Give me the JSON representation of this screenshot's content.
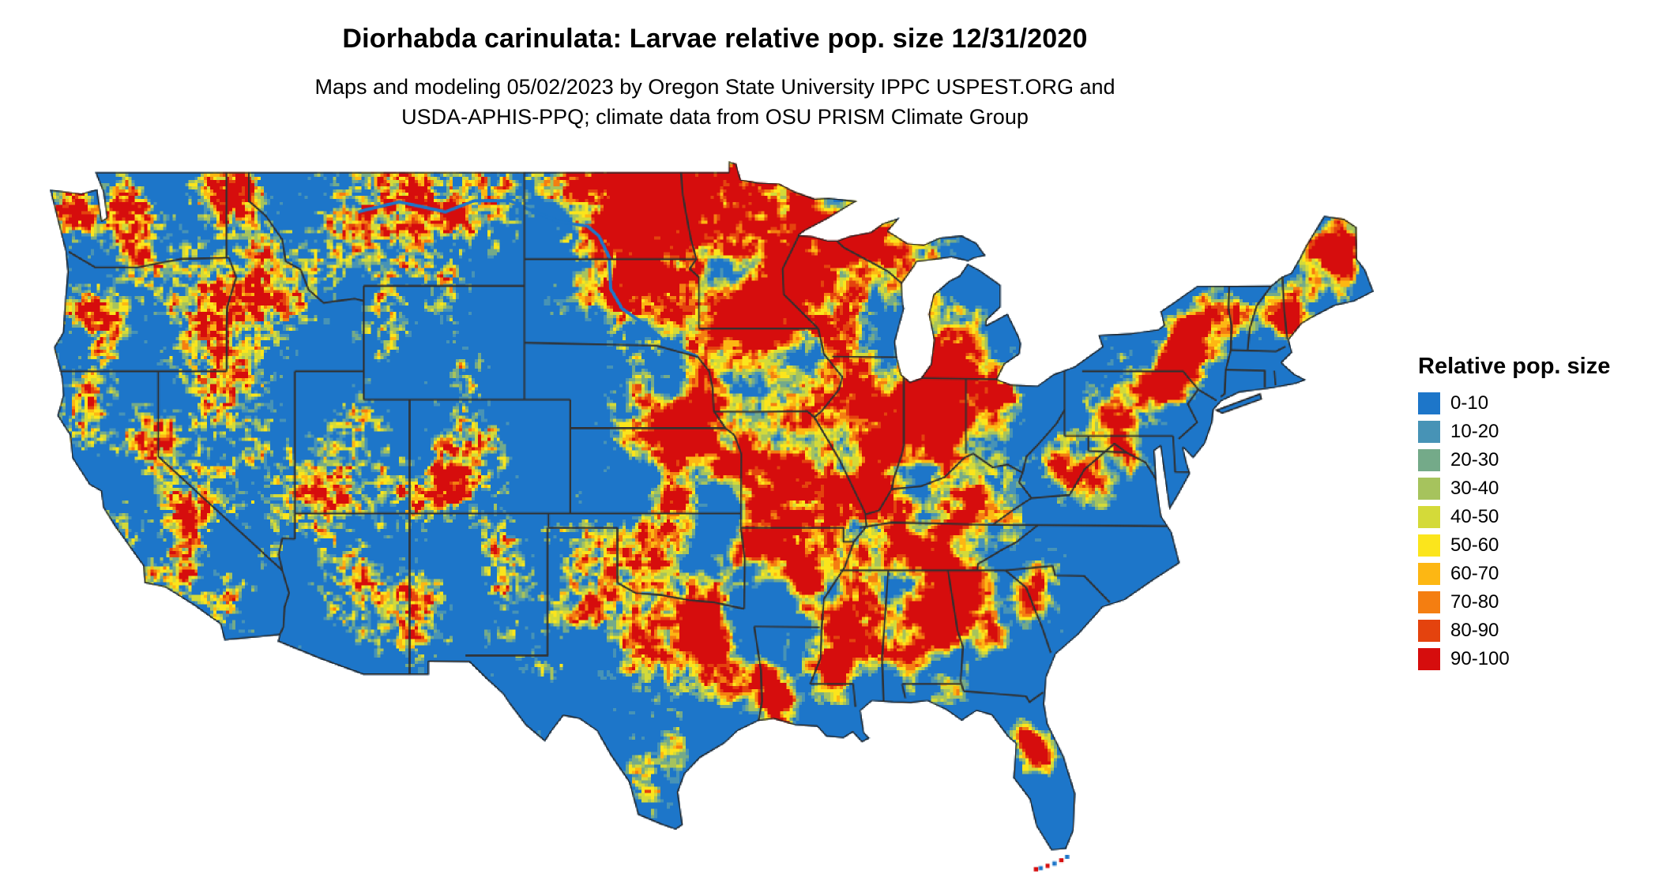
{
  "title": "Diorhabda carinulata: Larvae relative pop. size 12/31/2020",
  "subtitle_line1": "Maps and modeling 05/02/2023 by Oregon State University IPPC USPEST.ORG and",
  "subtitle_line2": "USDA-APHIS-PPQ; climate data from OSU PRISM Climate Group",
  "map": {
    "region": "Conterminous United States",
    "base_color": "#1d76c9",
    "boundary_color": "#262626",
    "background": "#ffffff"
  },
  "legend": {
    "title": "Relative pop. size",
    "items": [
      {
        "label": "0-10",
        "color": "#1d76c9"
      },
      {
        "label": "10-20",
        "color": "#4793b6"
      },
      {
        "label": "20-30",
        "color": "#74aa89"
      },
      {
        "label": "30-40",
        "color": "#a6c35d"
      },
      {
        "label": "40-50",
        "color": "#d4da39"
      },
      {
        "label": "50-60",
        "color": "#fbe51c"
      },
      {
        "label": "60-70",
        "color": "#fdb713"
      },
      {
        "label": "70-80",
        "color": "#f47e11"
      },
      {
        "label": "80-90",
        "color": "#e4430e"
      },
      {
        "label": "90-100",
        "color": "#d60d0d"
      }
    ]
  }
}
